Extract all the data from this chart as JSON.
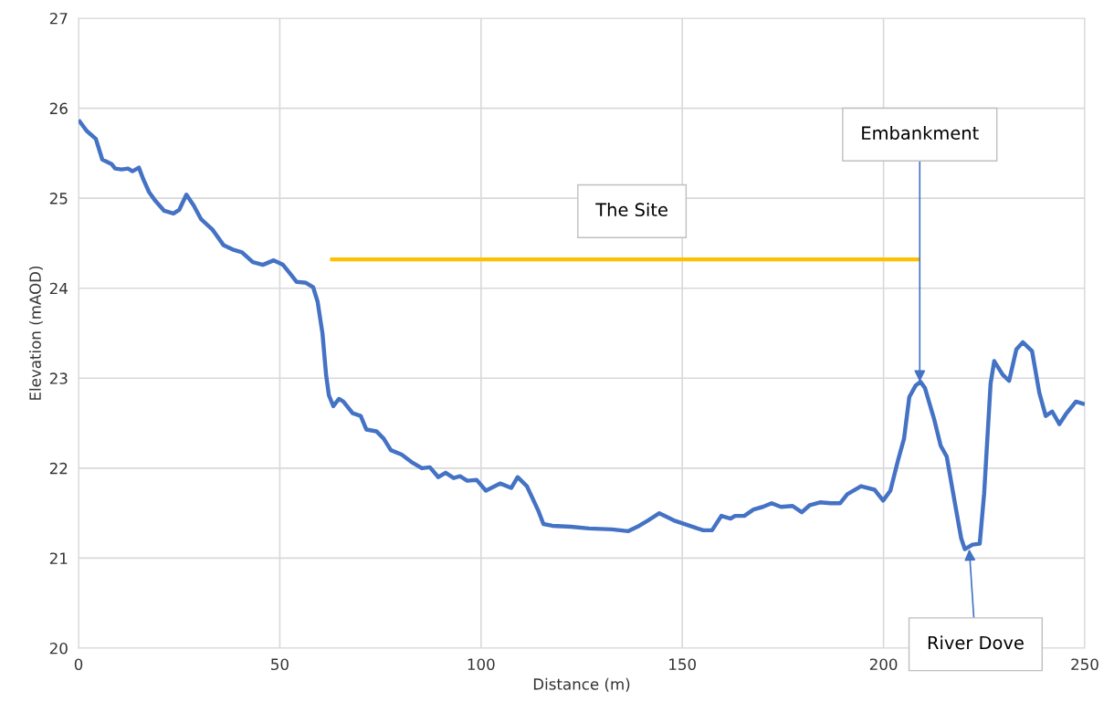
{
  "chart_data": {
    "type": "line",
    "xlabel": "Distance (m)",
    "ylabel": "Elevation (mAOD)",
    "xlim": [
      0,
      250
    ],
    "xticks": [
      0,
      50,
      100,
      150,
      200,
      250
    ],
    "ylim": [
      20,
      27
    ],
    "yticks": [
      20,
      21,
      22,
      23,
      24,
      25,
      26,
      27
    ],
    "grid": true,
    "marker": "none",
    "line_style": "solid",
    "series": [
      {
        "color": "#4472c4",
        "x": [
          0,
          2,
          4.3,
          5.9,
          8.2,
          9.1,
          10.7,
          12.3,
          13.4,
          15,
          16.1,
          17.5,
          19.1,
          21.3,
          23.6,
          25,
          26.8,
          28.6,
          30.4,
          33.3,
          36,
          38.3,
          40.6,
          43.3,
          45.8,
          48.5,
          50.8,
          52.6,
          54.2,
          56.5,
          58.3,
          59.4,
          60.6,
          61.5,
          62.2,
          63.3,
          64.7,
          65.8,
          68.1,
          70.1,
          71.5,
          74,
          75.8,
          77.6,
          80.3,
          83,
          85.3,
          87.3,
          89.4,
          91.2,
          93.2,
          94.8,
          96.6,
          98.9,
          101.2,
          103,
          104.8,
          107.5,
          109.1,
          111.4,
          114.3,
          115.5,
          117.7,
          122.3,
          126.8,
          132.5,
          136.6,
          139.3,
          141.5,
          144.3,
          147.9,
          151.1,
          155.2,
          157.4,
          159.7,
          162,
          163.1,
          165.4,
          167.7,
          170,
          172.2,
          174.5,
          177.4,
          179.7,
          181.7,
          184.2,
          186.9,
          189.2,
          191,
          194.4,
          197.8,
          199.9,
          201.7,
          203.5,
          205.1,
          206.4,
          208,
          209.2,
          210.3,
          212.6,
          214.2,
          215.7,
          217.5,
          219.3,
          220.2,
          222.1,
          223.9,
          225,
          226.6,
          227.5,
          229.6,
          231.2,
          233,
          234.6,
          236.9,
          238.7,
          240.3,
          241.9,
          243.7,
          245.3,
          247.8,
          250
        ],
        "values": [
          25.87,
          25.75,
          25.66,
          25.43,
          25.38,
          25.33,
          25.32,
          25.33,
          25.3,
          25.34,
          25.21,
          25.07,
          24.97,
          24.86,
          24.83,
          24.87,
          25.04,
          24.92,
          24.77,
          24.65,
          24.48,
          24.43,
          24.4,
          24.29,
          24.26,
          24.31,
          24.26,
          24.16,
          24.07,
          24.06,
          24.01,
          23.85,
          23.5,
          23.04,
          22.81,
          22.69,
          22.77,
          22.74,
          22.61,
          22.58,
          22.43,
          22.41,
          22.33,
          22.2,
          22.15,
          22.06,
          22,
          22.01,
          21.9,
          21.95,
          21.89,
          21.91,
          21.86,
          21.87,
          21.75,
          21.79,
          21.83,
          21.78,
          21.9,
          21.8,
          21.52,
          21.38,
          21.36,
          21.35,
          21.33,
          21.32,
          21.3,
          21.36,
          21.42,
          21.5,
          21.42,
          21.37,
          21.31,
          21.31,
          21.47,
          21.44,
          21.47,
          21.47,
          21.54,
          21.57,
          21.61,
          21.57,
          21.58,
          21.51,
          21.59,
          21.62,
          21.61,
          21.61,
          21.71,
          21.8,
          21.76,
          21.64,
          21.75,
          22.07,
          22.33,
          22.79,
          22.92,
          22.96,
          22.89,
          22.54,
          22.25,
          22.13,
          21.67,
          21.22,
          21.1,
          21.15,
          21.16,
          21.72,
          22.94,
          23.19,
          23.04,
          22.97,
          23.32,
          23.4,
          23.3,
          22.84,
          22.58,
          22.63,
          22.49,
          22.6,
          22.74,
          22.71
        ]
      },
      {
        "color": "#ffc000",
        "x": [
          62.5,
          209
        ],
        "values": [
          24.32,
          24.32
        ]
      }
    ],
    "annotations": [
      {
        "text": "The Site",
        "x": 137.5,
        "y": 24.32
      },
      {
        "text": "Embankment",
        "x": 209,
        "y": 22.96
      },
      {
        "text": "River Dove",
        "x": 221.3,
        "y": 21.1
      }
    ]
  }
}
